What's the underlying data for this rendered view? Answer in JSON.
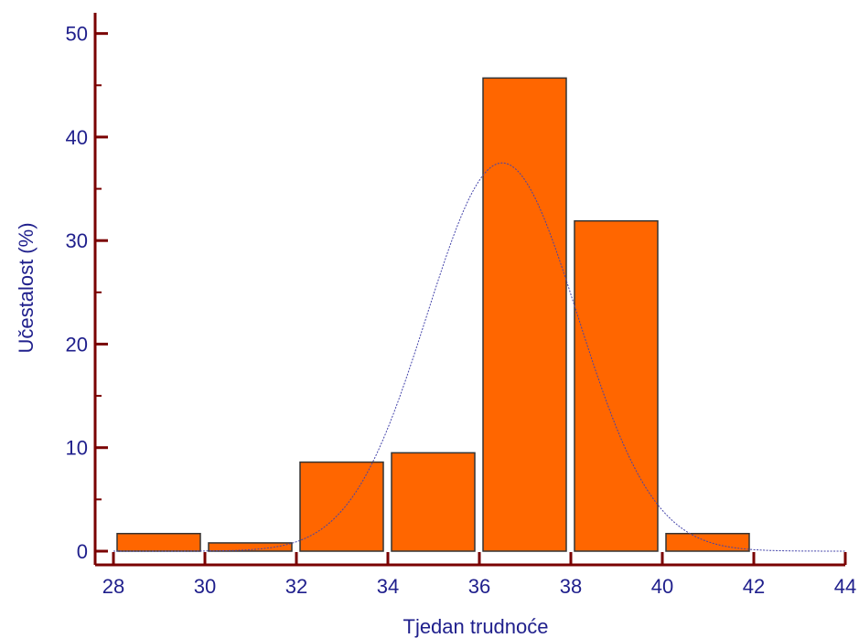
{
  "chart_data": {
    "type": "bar",
    "title": "",
    "xlabel": "Tjedan trudnoće",
    "ylabel": "Učestalost (%)",
    "xlim": [
      28,
      44
    ],
    "ylim": [
      0,
      52
    ],
    "x_ticks": [
      28,
      30,
      32,
      34,
      36,
      38,
      40,
      42,
      44
    ],
    "y_ticks": [
      0,
      10,
      20,
      30,
      40,
      50
    ],
    "bins": [
      {
        "start": 28,
        "end": 30,
        "value": 1.7
      },
      {
        "start": 30,
        "end": 32,
        "value": 0.8
      },
      {
        "start": 32,
        "end": 34,
        "value": 8.6
      },
      {
        "start": 34,
        "end": 36,
        "value": 9.5
      },
      {
        "start": 36,
        "end": 38,
        "value": 45.7
      },
      {
        "start": 38,
        "end": 40,
        "value": 31.9
      },
      {
        "start": 40,
        "end": 42,
        "value": 1.7
      }
    ],
    "normal_curve": {
      "mean": 36.5,
      "sd": 1.65,
      "peak": 37.5
    },
    "grid": false,
    "colors": {
      "bar_fill": "#ff6600",
      "bar_stroke": "#333333",
      "axis": "#7a0000",
      "text": "#1f1f8c",
      "curve": "#4444aa"
    }
  }
}
